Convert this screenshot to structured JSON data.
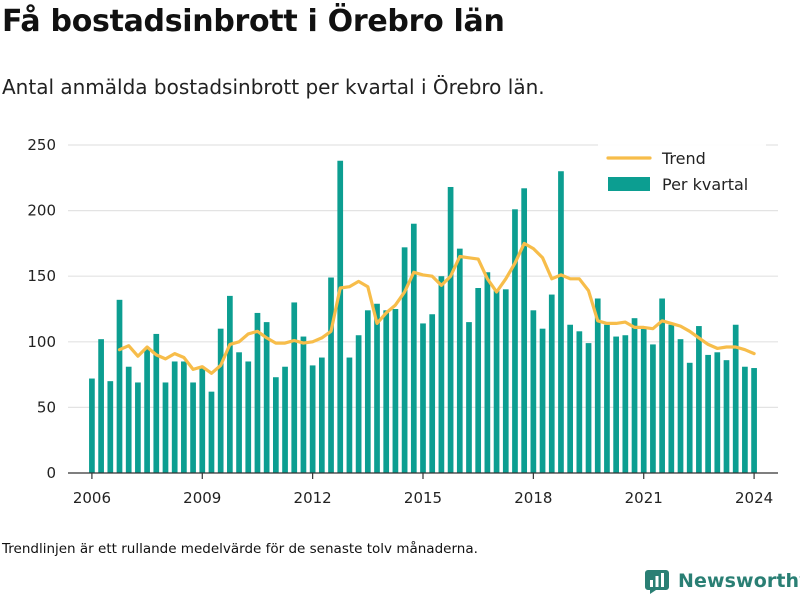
{
  "title": "Få bostadsinbrott i Örebro län",
  "subtitle": "Antal anmälda bostadsinbrott per kvartal i Örebro län.",
  "footnote": "Trendlinjen är ett rullande medelvärde för de senaste tolv månaderna.",
  "brand": "Newsworthy",
  "colors": {
    "bar": "#0c9e91",
    "trend": "#f7bd4a",
    "grid": "#e3e3e3",
    "brand": "#2a7f74"
  },
  "chart_data": {
    "type": "bar",
    "ylim": [
      0,
      250
    ],
    "xlim": [
      2005.35,
      2024.65
    ],
    "yticks": [
      0,
      50,
      100,
      150,
      200,
      250
    ],
    "xticks": [
      2006,
      2009,
      2012,
      2015,
      2018,
      2021,
      2024
    ],
    "legend_placement": "top-right",
    "grid": true,
    "series": [
      {
        "name": "Per kvartal",
        "kind": "bar",
        "x": [
          2006.0,
          2006.25,
          2006.5,
          2006.75,
          2007.0,
          2007.25,
          2007.5,
          2007.75,
          2008.0,
          2008.25,
          2008.5,
          2008.75,
          2009.0,
          2009.25,
          2009.5,
          2009.75,
          2010.0,
          2010.25,
          2010.5,
          2010.75,
          2011.0,
          2011.25,
          2011.5,
          2011.75,
          2012.0,
          2012.25,
          2012.5,
          2012.75,
          2013.0,
          2013.25,
          2013.5,
          2013.75,
          2014.0,
          2014.25,
          2014.5,
          2014.75,
          2015.0,
          2015.25,
          2015.5,
          2015.75,
          2016.0,
          2016.25,
          2016.5,
          2016.75,
          2017.0,
          2017.25,
          2017.5,
          2017.75,
          2018.0,
          2018.25,
          2018.5,
          2018.75,
          2019.0,
          2019.25,
          2019.5,
          2019.75,
          2020.0,
          2020.25,
          2020.5,
          2020.75,
          2021.0,
          2021.25,
          2021.5,
          2021.75,
          2022.0,
          2022.25,
          2022.5,
          2022.75,
          2023.0,
          2023.25,
          2023.5,
          2023.75,
          2024.0
        ],
        "values": [
          72,
          102,
          70,
          132,
          81,
          69,
          95,
          106,
          69,
          85,
          85,
          69,
          80,
          62,
          110,
          135,
          92,
          85,
          122,
          115,
          73,
          81,
          130,
          104,
          82,
          88,
          149,
          238,
          88,
          105,
          124,
          129,
          124,
          125,
          172,
          190,
          114,
          121,
          150,
          218,
          171,
          115,
          141,
          153,
          139,
          140,
          201,
          217,
          124,
          110,
          136,
          230,
          113,
          108,
          99,
          133,
          113,
          104,
          105,
          118,
          110,
          98,
          133,
          113,
          102,
          84,
          112,
          90,
          92,
          86,
          113,
          81,
          80
        ]
      },
      {
        "name": "Trend",
        "kind": "line",
        "x": [
          2006.75,
          2007.0,
          2007.25,
          2007.5,
          2007.75,
          2008.0,
          2008.25,
          2008.5,
          2008.75,
          2009.0,
          2009.25,
          2009.5,
          2009.75,
          2010.0,
          2010.25,
          2010.5,
          2010.75,
          2011.0,
          2011.25,
          2011.5,
          2011.75,
          2012.0,
          2012.25,
          2012.5,
          2012.75,
          2013.0,
          2013.25,
          2013.5,
          2013.75,
          2014.0,
          2014.25,
          2014.5,
          2014.75,
          2015.0,
          2015.25,
          2015.5,
          2015.75,
          2016.0,
          2016.25,
          2016.5,
          2016.75,
          2017.0,
          2017.25,
          2017.5,
          2017.75,
          2018.0,
          2018.25,
          2018.5,
          2018.75,
          2019.0,
          2019.25,
          2019.5,
          2019.75,
          2020.0,
          2020.25,
          2020.5,
          2020.75,
          2021.0,
          2021.25,
          2021.5,
          2021.75,
          2022.0,
          2022.25,
          2022.5,
          2022.75,
          2023.0,
          2023.25,
          2023.5,
          2023.75,
          2024.0
        ],
        "values": [
          94,
          97,
          89,
          96,
          90,
          87,
          91,
          88,
          79,
          81,
          76,
          82,
          98,
          100,
          106,
          108,
          103,
          99,
          99,
          101,
          99,
          100,
          103,
          108,
          141,
          142,
          146,
          142,
          114,
          122,
          128,
          138,
          153,
          151,
          150,
          143,
          150,
          165,
          164,
          163,
          148,
          138,
          148,
          160,
          175,
          171,
          164,
          148,
          151,
          148,
          148,
          139,
          116,
          114,
          114,
          115,
          111,
          111,
          110,
          116,
          114,
          112,
          108,
          103,
          98,
          95,
          96,
          96,
          94,
          91
        ]
      }
    ]
  }
}
